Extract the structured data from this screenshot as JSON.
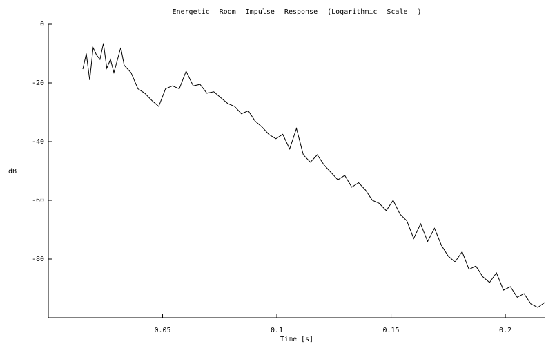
{
  "chart_data": {
    "type": "line",
    "title": "Energetic Room Impulse Response (Logarithmic Scale )",
    "x_label": "Time [s]",
    "y_label": "dB",
    "color": "#000000",
    "xlim": [
      0,
      0.2175
    ],
    "xticks": [
      0.05,
      0.1,
      0.15,
      0.2
    ],
    "ylim": [
      -100,
      0
    ],
    "yticks": [
      0,
      -20,
      -40,
      -60,
      -80
    ],
    "x": [
      0.0151,
      0.0166,
      0.0181,
      0.0196,
      0.0211,
      0.0226,
      0.0241,
      0.0256,
      0.0272,
      0.0287,
      0.0317,
      0.0332,
      0.0362,
      0.0392,
      0.0422,
      0.0453,
      0.0483,
      0.0513,
      0.0543,
      0.0573,
      0.0603,
      0.0634,
      0.0664,
      0.0694,
      0.0724,
      0.0754,
      0.0785,
      0.0815,
      0.0845,
      0.0875,
      0.0905,
      0.0935,
      0.0966,
      0.0996,
      0.1026,
      0.1056,
      0.1086,
      0.1116,
      0.1147,
      0.1177,
      0.1207,
      0.1237,
      0.1267,
      0.1297,
      0.1328,
      0.1358,
      0.1388,
      0.1418,
      0.1448,
      0.1479,
      0.1509,
      0.1539,
      0.1569,
      0.1599,
      0.1629,
      0.166,
      0.169,
      0.172,
      0.175,
      0.178,
      0.1811,
      0.1841,
      0.1871,
      0.1901,
      0.1931,
      0.1961,
      0.1992,
      0.2022,
      0.2052,
      0.2082,
      0.2112,
      0.2142,
      0.2173
    ],
    "values": [
      -15.3,
      -10,
      -19,
      -8,
      -10.5,
      -12,
      -6.5,
      -15,
      -12,
      -16.5,
      -8,
      -14,
      -16.5,
      -22,
      -23.5,
      -26,
      -28,
      -22,
      -21,
      -22,
      -16,
      -21,
      -20.5,
      -23.5,
      -23,
      -25,
      -27,
      -28,
      -30.5,
      -29.5,
      -33,
      -35,
      -37.6,
      -39,
      -37.5,
      -42.5,
      -35.5,
      -44.5,
      -47,
      -44.5,
      -48,
      -50.5,
      -53,
      -51.5,
      -55.5,
      -54,
      -56.5,
      -60,
      -61,
      -63.5,
      -60,
      -64.7,
      -67,
      -73,
      -68,
      -74,
      -69.5,
      -75.3,
      -79,
      -81,
      -77.5,
      -83.5,
      -82.4,
      -86,
      -88,
      -84.7,
      -90.6,
      -89.4,
      -93,
      -91.8,
      -95.3,
      -96.5,
      -94.8
    ]
  }
}
